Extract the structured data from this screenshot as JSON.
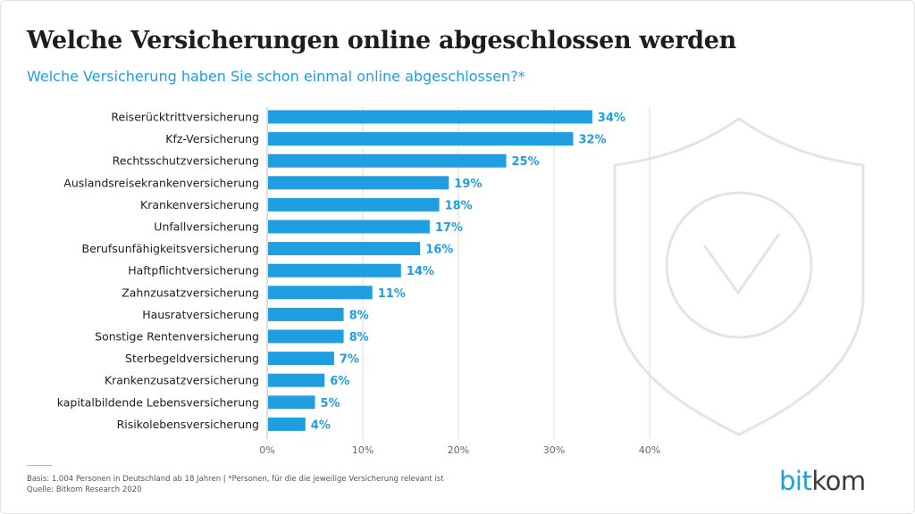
{
  "header": {
    "title": "Welche Versicherungen online abgeschlossen werden",
    "subtitle": "Welche Versicherung haben Sie schon einmal online abgeschlossen?*"
  },
  "chart_data": {
    "type": "bar",
    "orientation": "horizontal",
    "categories": [
      "Reiserücktrittversicherung",
      "Kfz-Versicherung",
      "Rechtsschutzversicherung",
      "Auslandsreisekrankenversicherung",
      "Krankenversicherung",
      "Unfallversicherung",
      "Berufsunfähigkeitsversicherung",
      "Haftpflichtversicherung",
      "Zahnzusatzversicherung",
      "Hausratversicherung",
      "Sonstige Rentenversicherung",
      "Sterbegeldversicherung",
      "Krankenzusatzversicherung",
      "kapitalbildende Lebensversicherung",
      "Risikolebensversicherung"
    ],
    "values": [
      34,
      32,
      25,
      19,
      18,
      17,
      16,
      14,
      11,
      8,
      8,
      7,
      6,
      5,
      4
    ],
    "value_labels": [
      "34%",
      "32%",
      "25%",
      "19%",
      "18%",
      "17%",
      "16%",
      "14%",
      "11%",
      "8%",
      "8%",
      "7%",
      "6%",
      "5%",
      "4%"
    ],
    "x_ticks": [
      0,
      10,
      20,
      30,
      40
    ],
    "x_tick_labels": [
      "0%",
      "10%",
      "20%",
      "30%",
      "40%"
    ],
    "xlim": [
      0,
      40
    ],
    "grid": true,
    "bar_color": "#1f9ee2"
  },
  "footer": {
    "basis": "Basis: 1.004 Personen in Deutschland ab 18 Jahren | *Personen, für die die jeweilige Versicherung relevant ist",
    "source": "Quelle: Bitkom Research 2020"
  },
  "logo": {
    "part1": "bit",
    "part2": "kom"
  },
  "decoration": {
    "watermark_icon": "shield-check-icon"
  }
}
